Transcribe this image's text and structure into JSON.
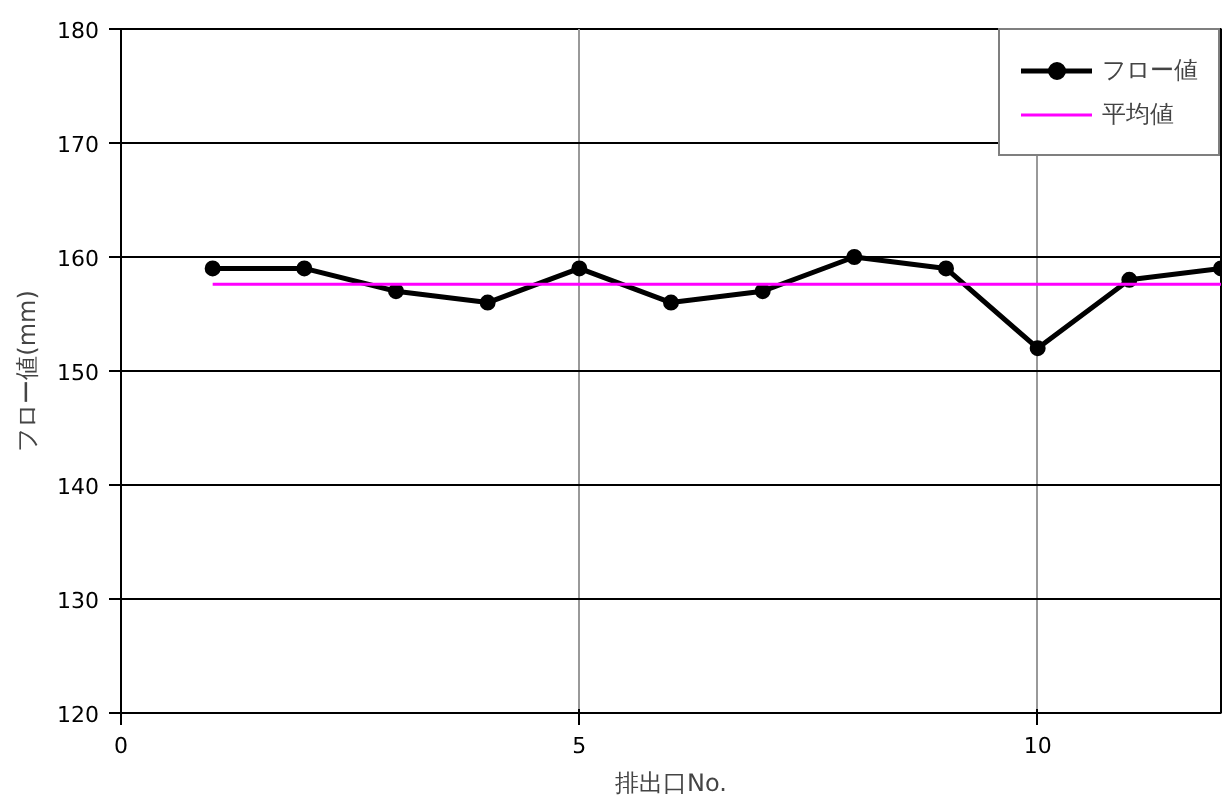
{
  "chart_data": {
    "type": "line",
    "xlabel": "排出口No.",
    "ylabel": "フロー値(mm)",
    "x": [
      1,
      2,
      3,
      4,
      5,
      6,
      7,
      8,
      9,
      10,
      11,
      12
    ],
    "series": [
      {
        "name": "フロー値",
        "color": "#000000",
        "values": [
          159,
          159,
          157,
          156,
          159,
          156,
          157,
          160,
          159,
          152,
          158,
          159
        ],
        "marker": "circle"
      },
      {
        "name": "平均値",
        "color": "#ff00ff",
        "values": [
          157.6,
          157.6,
          157.6,
          157.6,
          157.6,
          157.6,
          157.6,
          157.6,
          157.6,
          157.6,
          157.6,
          157.6
        ],
        "marker": "none"
      }
    ],
    "xlim": [
      0,
      12
    ],
    "ylim": [
      120,
      180
    ],
    "xticks": [
      0,
      5,
      10
    ],
    "yticks": [
      120,
      130,
      140,
      150,
      160,
      170,
      180
    ],
    "grid": true,
    "legend": "top right",
    "line_style": "solid"
  }
}
